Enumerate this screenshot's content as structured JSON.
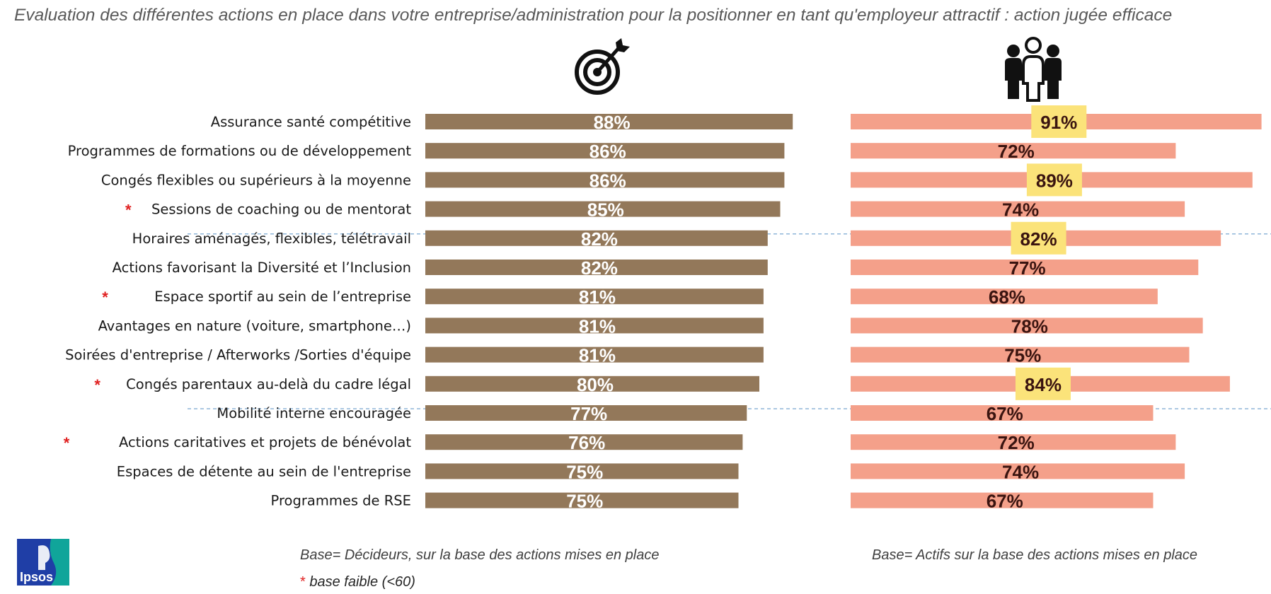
{
  "title": "Evaluation des différentes actions en place dans votre entreprise/administration pour la positionner en tant qu'employeur attractif : action jugée efficace",
  "chart_data": {
    "type": "bar",
    "orientation": "horizontal",
    "value_suffix": "%",
    "xlim": [
      0,
      100
    ],
    "categories": [
      "Assurance santé compétitive",
      "Programmes de formations ou de développement",
      "Congés flexibles ou supérieurs à la moyenne",
      "Sessions de coaching ou de mentorat",
      "Horaires aménagés, flexibles, télétravail",
      "Actions favorisant la Diversité et l’Inclusion",
      "Espace sportif au sein de l’entreprise",
      "Avantages en nature (voiture, smartphone…)",
      "Soirées d'entreprise / Afterworks /Sorties d'équipe",
      "Congés parentaux au-delà du cadre légal",
      "Mobilité interne encouragée",
      "Actions caritatives et projets de bénévolat",
      "Espaces de détente au sein de l'entreprise",
      "Programmes de RSE"
    ],
    "low_base_marker": [
      false,
      false,
      false,
      true,
      false,
      false,
      true,
      false,
      false,
      true,
      false,
      true,
      false,
      false
    ],
    "series": [
      {
        "panel": "left",
        "icon": "target-icon",
        "color": "#93785a",
        "label_color": "#ffffff",
        "values": [
          88,
          86,
          86,
          85,
          82,
          82,
          81,
          81,
          81,
          80,
          77,
          76,
          75,
          75
        ]
      },
      {
        "panel": "right",
        "icon": "people-group-icon",
        "color": "#f4a08a",
        "label_color": "#3a1410",
        "highlight_color": "#fbe37a",
        "highlighted": [
          true,
          false,
          true,
          false,
          true,
          false,
          false,
          false,
          false,
          true,
          false,
          false,
          false,
          false
        ],
        "values": [
          91,
          72,
          89,
          74,
          82,
          77,
          68,
          78,
          75,
          84,
          67,
          72,
          74,
          67
        ]
      }
    ],
    "group_separators_after": [
      3,
      9
    ]
  },
  "base_left": "Base= Décideurs, sur la base des actions mises en place",
  "base_right": "Base= Actifs sur la base des actions mises en place",
  "footnote_star": "*",
  "footnote_text": "base faible (<60)",
  "logo_text": "Ipsos",
  "colors": {
    "logo_blue": "#1f3ea6",
    "logo_teal": "#10a59a",
    "star_red": "#e02020",
    "separator": "#8fb6d9"
  }
}
